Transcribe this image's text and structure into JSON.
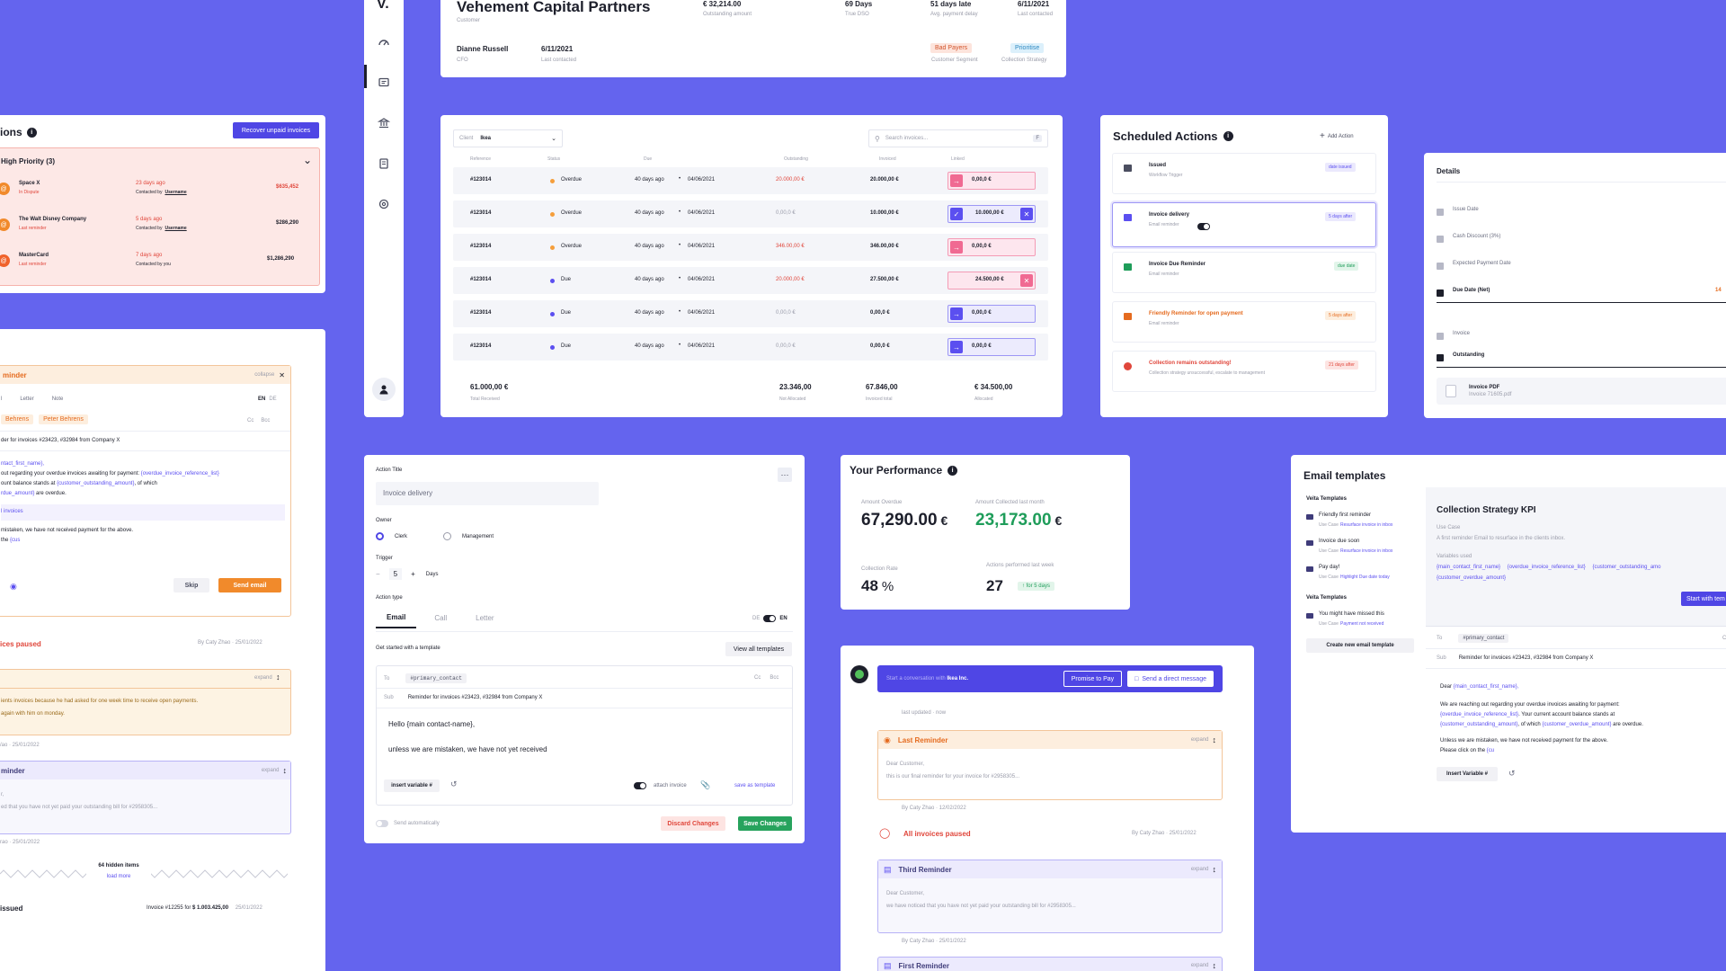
{
  "customer": {
    "name": "Vehement Capital Partners",
    "kind": "Customer",
    "stats": [
      {
        "value": "€ 32,214.00",
        "label": "Outstanding amount"
      },
      {
        "value": "69 Days",
        "label": "True DSO"
      },
      {
        "value": "51 days late",
        "label": "Avg. payment delay"
      },
      {
        "value": "6/11/2021",
        "label": "Last contacted"
      }
    ],
    "contact_name": "Dianne Russell",
    "contact_role": "CFO",
    "contact_date": "6/11/2021",
    "contact_date_label": "Last contacted",
    "segment": "Bad Payers",
    "segment_label": "Customer Segment",
    "strategy": "Prioritise",
    "strategy_label": "Collection Strategy"
  },
  "sidebar": {
    "logo": "V."
  },
  "invoices": {
    "client_label": "Client",
    "client_value": "Ikea",
    "search_placeholder": "Search invoices...",
    "headers": [
      "Reference",
      "Status",
      "Due",
      "Outstanding",
      "Invoiced",
      "Linked"
    ],
    "rows": [
      {
        "ref": "#123014",
        "status": "Overdue",
        "status_color": "#f59e3b",
        "ago": "40 days ago",
        "date": "04/06/2021",
        "outstanding": "20.000,00 €",
        "out_color": "#e0463b",
        "invoiced": "20.000,00 €",
        "linked": "0,00,0 €",
        "linked_type": "pink",
        "has_x": false
      },
      {
        "ref": "#123014",
        "status": "Overdue",
        "status_color": "#f59e3b",
        "ago": "40 days ago",
        "date": "04/06/2021",
        "outstanding": "0,00,0 €",
        "out_color": "#9a9caa",
        "invoiced": "10.000,00 €",
        "linked": "10.000,00 €",
        "linked_type": "purple",
        "has_x": true
      },
      {
        "ref": "#123014",
        "status": "Overdue",
        "status_color": "#f59e3b",
        "ago": "40 days ago",
        "date": "04/06/2021",
        "outstanding": "346.00,00 €",
        "out_color": "#e0463b",
        "invoiced": "346.00,00 €",
        "linked": "0,00,0 €",
        "linked_type": "pink",
        "has_x": false
      },
      {
        "ref": "#123014",
        "status": "Due",
        "status_color": "#5b4ff0",
        "ago": "40 days ago",
        "date": "04/06/2021",
        "outstanding": "20.000,00 €",
        "out_color": "#e0463b",
        "invoiced": "27.500,00 €",
        "linked": "24.500,00 €",
        "linked_type": "pinkx",
        "has_x": true
      },
      {
        "ref": "#123014",
        "status": "Due",
        "status_color": "#5b4ff0",
        "ago": "40 days ago",
        "date": "04/06/2021",
        "outstanding": "0,00,0 €",
        "out_color": "#9a9caa",
        "invoiced": "0,00,0 €",
        "linked": "0,00,0 €",
        "linked_type": "purple",
        "has_x": false
      },
      {
        "ref": "#123014",
        "status": "Due",
        "status_color": "#5b4ff0",
        "ago": "40 days ago",
        "date": "04/06/2021",
        "outstanding": "0,00,0 €",
        "out_color": "#9a9caa",
        "invoiced": "0,00,0 €",
        "linked": "0,00,0 €",
        "linked_type": "purple",
        "has_x": false
      }
    ],
    "footer": [
      {
        "value": "61.000,00 €",
        "label": "Total Received"
      },
      {
        "value": "23.346,00",
        "label": "Not Allocated"
      },
      {
        "value": "67.846,00",
        "label": "Invoiced total"
      },
      {
        "value": "€ 34.500,00",
        "label": "Allocated"
      }
    ]
  },
  "scheduled": {
    "title": "Scheduled Actions",
    "add_label": "Add Action",
    "items": [
      {
        "title": "Issued",
        "sub": "Workflow Trigger",
        "badge": "date issued",
        "badge_color": "#5b4ff0",
        "badge_bg": "#ebe9fd",
        "title_color": "#1d1f2b",
        "icon_color": "#4b4e60"
      },
      {
        "title": "Invoice delivery",
        "sub": "Email reminder",
        "badge": "5 days after",
        "badge_color": "#5b4ff0",
        "badge_bg": "#ebe9fd",
        "title_color": "#1d1f2b",
        "icon_color": "#5b4ff0"
      },
      {
        "title": "Invoice Due Reminder",
        "sub": "Email reminder",
        "badge": "due date",
        "badge_color": "#1f9d5a",
        "badge_bg": "#e2f5ea",
        "title_color": "#1d1f2b",
        "icon_color": "#1f9d5a"
      },
      {
        "title": "Friendly Reminder for open payment",
        "sub": "Email reminder",
        "badge": "5 days after",
        "badge_color": "#e56b1f",
        "badge_bg": "#fdeede",
        "title_color": "#e56b1f",
        "icon_color": "#e56b1f"
      },
      {
        "title": "Collection remains outstanding!",
        "sub": "Collection strategy unsuccessful, escalate to management",
        "badge": "21 days after",
        "badge_color": "#e0463b",
        "badge_bg": "#fde4e2",
        "title_color": "#e0463b",
        "icon_color": "#e0463b"
      }
    ]
  },
  "details": {
    "title": "Details",
    "items": [
      "Issue Date",
      "Cash Discount (3%)",
      "Expected Payment Date",
      "Due Date (Net)",
      "Invoice",
      "Outstanding"
    ],
    "due_value": "14",
    "pdf_title": "Invoice PDF",
    "pdf_name": "Invoice 71605.pdf"
  },
  "priorities": {
    "title": "ions",
    "recover_label": "Recover unpaid invoices",
    "group_label": "High Priority (3)",
    "items": [
      {
        "name": "Space X",
        "status": "In Dispute",
        "ago": "23 days ago",
        "contact": "Contacted by",
        "user": "Username",
        "amount": "$635,452",
        "amount_color": "#e0463b"
      },
      {
        "name": "The Walt Disney Company",
        "status": "Last reminder",
        "ago": "5 days ago",
        "contact": "Contacted by",
        "user": "Username",
        "amount": "$286,290",
        "amount_color": "#1d1f2b"
      },
      {
        "name": "MasterCard",
        "status": "Last reminder",
        "ago": "7 days ago",
        "contact": "Contacted by you",
        "user": "",
        "amount": "$1,286,290",
        "amount_color": "#1d1f2b"
      }
    ]
  },
  "reminder": {
    "title": "minder",
    "collapse": "collapse",
    "tabs": [
      "l",
      "Letter",
      "Note"
    ],
    "lang": [
      "EN",
      "DE"
    ],
    "chip1": "Behrens",
    "chip2": "Peter Behrens",
    "cc": "Cc",
    "bcc": "Bcc",
    "subject": "der for invoices #23423, #32984 from Company X",
    "body1": "ntact_first_name},",
    "body2": "out regarding your overdue invoices awaiting for payment:",
    "body2b": "{overdue_invoice_reference_list}",
    "body3": "ount balance stands at",
    "body3b": "{customer_outstanding_amount}",
    "body3c": ", of which",
    "body4": "rdue_amount}",
    "body4b": "are overdue.",
    "inv": "l invoices",
    "body5": "mistaken, we have not received payment for the above.",
    "body6": "the",
    "body6b": "{cus",
    "skip": "Skip",
    "send": "Send email",
    "paused": "ices paused",
    "paused_by": "By Caty Zhao · 25/01/2022",
    "expand": "expand",
    "note1": "ients invoices because he had asked for one week time to receive open payments.",
    "note2": "again with him on monday.",
    "note_date": "/ao · 25/01/2022",
    "rem2_title": "minder",
    "rem2_line1": "r,",
    "rem2_line2": "ed that you have not yet paid your outstanding bill for #2958305...",
    "rem2_date": "rao · 25/01/2022",
    "hidden": "64 hidden items",
    "load_more": "load more",
    "issued": "issued",
    "issued_desc": "Invoice #12255 for",
    "issued_amount": "$ 1.003.425,00",
    "issued_date": "25/01/2022"
  },
  "action": {
    "title_label": "Action Title",
    "title_value": "Invoice delivery",
    "owner_label": "Owner",
    "owner_opts": [
      "Clerk",
      "Management"
    ],
    "trigger_label": "Trigger",
    "trigger_value": "5",
    "trigger_unit": "Days",
    "type_label": "Action type",
    "types": [
      "Email",
      "Call",
      "Letter"
    ],
    "lang_de": "DE",
    "lang_en": "EN",
    "template_hint": "Get started with a template",
    "view_all": "View all templates",
    "to_label": "To",
    "to_value": "#primary_contact",
    "cc": "Cc",
    "bcc": "Bcc",
    "sub_label": "Sub",
    "sub_value": "Reminder for invoices #23423, #32984 from Company X",
    "body1": "Hello {main contact-name},",
    "body2": "unless we are mistaken, we have not yet received",
    "insert_var": "insert variable #",
    "attach": "attach invoice",
    "save_template": "save as template",
    "send_auto": "Send automatically",
    "discard": "Discard Changes",
    "save": "Save Changes"
  },
  "performance": {
    "title": "Your Performance",
    "overdue_label": "Amount Overdue",
    "overdue_value": "67,290.00",
    "collected_label": "Amount Collected last month",
    "collected_value": "23,173.00",
    "currency": "€",
    "rate_label": "Collection Rate",
    "rate_value": "48",
    "rate_unit": "%",
    "actions_label": "Actions performed last week",
    "actions_value": "27",
    "actions_badge": "for 5 days"
  },
  "conversation": {
    "placeholder": "Start a conversation with",
    "company": "Ikea Inc.",
    "promise": "Promise to Pay",
    "direct": "Send a direct message",
    "updated": "last updated · now",
    "last_title": "Last Reminder",
    "expand": "expand",
    "dear": "Dear Customer,",
    "last_body": "this is our final reminder for your invoice for #2958305...",
    "last_by": "By Caty Zhao · 12/02/2022",
    "paused": "All invoices paused",
    "paused_by": "By Caty Zhao · 25/01/2022",
    "third_title": "Third Reminder",
    "third_body": "we have noticed that you have not yet paid your outstanding bill for #2958305...",
    "third_by": "By Caty Zhao · 25/01/2022",
    "first_title": "First Reminder"
  },
  "templates": {
    "title": "Email templates",
    "veita_label": "Veita Templates",
    "veita_label2": "Veita Templates",
    "use_case": "Use Case",
    "items": [
      {
        "name": "Friendly first reminder",
        "use": "Resurface invoice in inbox"
      },
      {
        "name": "Invoice due soon",
        "use": "Resurface invoice in inbox"
      },
      {
        "name": "Pay day!",
        "use": "Highlight Due date today"
      }
    ],
    "items2": [
      {
        "name": "You might have missed this",
        "use": "Payment not received"
      }
    ],
    "create": "Create new email template",
    "kpi_title": "Collection Strategy KPI",
    "kpi_use": "Use Case",
    "kpi_desc": "A first reminder Email to resurface in the clients inbox.",
    "vars_label": "Variables used",
    "vars": [
      "{main_contact_first_name}",
      "{overdue_invoice_reference_list}",
      "{customer_outstanding_amo",
      "{customer_overdue_amount}"
    ],
    "start": "Start with tem",
    "to_label": "To",
    "to_value": "#primary_contact",
    "cc": "Cc",
    "sub_label": "Sub",
    "sub_value": "Reminder for invoices #23423, #32984 from Company X",
    "dear": "Dear",
    "dear_var": "{main_contact_first_name},",
    "p1": "We are reaching out regarding your overdue invoices awaiting for payment:",
    "p1_var": "{overdue_invoice_reference_list}",
    "p1b": ". Your current account balance stands at",
    "p1_var2": "{customer_outstanding_amount}",
    "p1c": ", of which",
    "p1_var3": "{customer_overdue_amount}",
    "p1d": "are overdue.",
    "p2": "Unless we are mistaken, we have not received payment for the above.",
    "p3": "Please click on the",
    "p3_var": "{cu",
    "insert": "Insert Variable #"
  }
}
